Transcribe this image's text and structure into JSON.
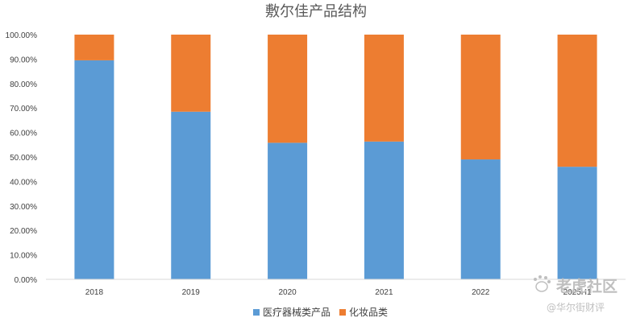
{
  "chart_data": {
    "type": "bar",
    "stacked": true,
    "title": "敷尔佳产品结构",
    "categories": [
      "2018",
      "2019",
      "2020",
      "2021",
      "2022",
      "2025H1"
    ],
    "series": [
      {
        "name": "医疗器械类产品",
        "values": [
          0.895,
          0.685,
          0.558,
          0.563,
          0.49,
          0.46
        ]
      },
      {
        "name": "化妆品类",
        "values": [
          0.105,
          0.315,
          0.442,
          0.437,
          0.51,
          0.54
        ]
      }
    ],
    "colors": [
      "#5b9bd5",
      "#ed7d31"
    ],
    "ylim": [
      0,
      1
    ],
    "yticks": [
      "0.00%",
      "10.00%",
      "20.00%",
      "30.00%",
      "40.00%",
      "50.00%",
      "60.00%",
      "70.00%",
      "80.00%",
      "90.00%",
      "100.00%"
    ],
    "grid": false,
    "legend_position": "bottom"
  },
  "watermark": {
    "main_text": "老虎社区",
    "sub_text": "@华尔街财评"
  }
}
